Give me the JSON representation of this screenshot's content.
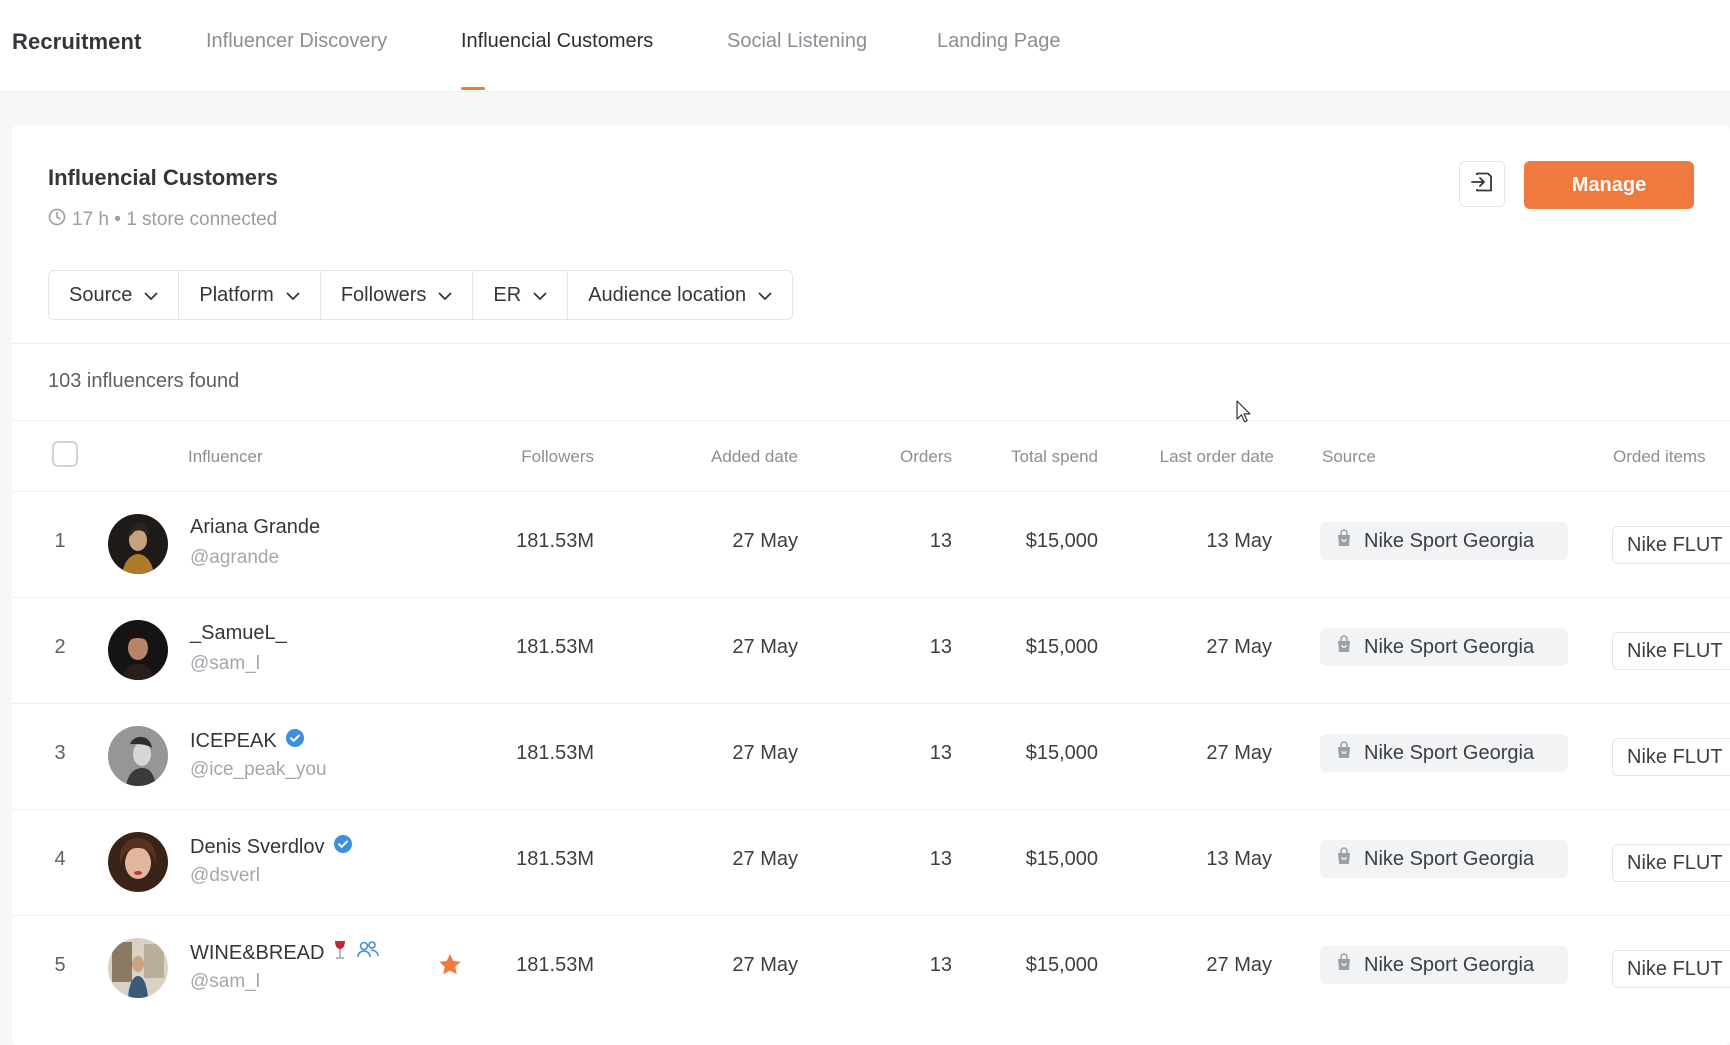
{
  "nav": {
    "brand": "Recruitment",
    "tabs": [
      "Influencer Discovery",
      "Influencial Customers",
      "Social Listening",
      "Landing Page"
    ],
    "active_tab": "Influencial Customers"
  },
  "card": {
    "title": "Influencial Customers",
    "subtitle": "17 h • 1 store connected",
    "manage_label": "Manage",
    "export_icon": "export-icon"
  },
  "filters": [
    "Source",
    "Platform",
    "Followers",
    "ER",
    "Audience location"
  ],
  "results": {
    "found_text": "103 influencers found"
  },
  "table": {
    "headers": {
      "influencer": "Influencer",
      "followers": "Followers",
      "added_date": "Added date",
      "orders": "Orders",
      "total_spend": "Total spend",
      "last_order_date": "Last order date",
      "source": "Source",
      "ordered_items": "Orded items"
    },
    "rows": [
      {
        "index": "1",
        "name": "Ariana Grande",
        "handle": "@agrande",
        "verified": false,
        "followers": "181.53M",
        "added_date": "27 May",
        "orders": "13",
        "total_spend": "$15,000",
        "last_order_date": "13 May",
        "source": "Nike Sport Georgia",
        "ordered_items": "Nike FLUT"
      },
      {
        "index": "2",
        "name": "_SamueL_",
        "handle": "@sam_l",
        "verified": false,
        "followers": "181.53M",
        "added_date": "27 May",
        "orders": "13",
        "total_spend": "$15,000",
        "last_order_date": "27 May",
        "source": "Nike Sport Georgia",
        "ordered_items": "Nike FLUT"
      },
      {
        "index": "3",
        "name": "ICEPEAK",
        "handle": "@ice_peak_you",
        "verified": true,
        "followers": "181.53M",
        "added_date": "27 May",
        "orders": "13",
        "total_spend": "$15,000",
        "last_order_date": "27 May",
        "source": "Nike Sport Georgia",
        "ordered_items": "Nike FLUT"
      },
      {
        "index": "4",
        "name": "Denis Sverdlov",
        "handle": "@dsverl",
        "verified": true,
        "followers": "181.53M",
        "added_date": "27 May",
        "orders": "13",
        "total_spend": "$15,000",
        "last_order_date": "13 May",
        "source": "Nike Sport Georgia",
        "ordered_items": "Nike FLUT"
      },
      {
        "index": "5",
        "name": "WINE&BREAD",
        "handle": "@sam_l",
        "verified": false,
        "followers": "181.53M",
        "added_date": "27 May",
        "orders": "13",
        "total_spend": "$15,000",
        "last_order_date": "27 May",
        "source": "Nike Sport Georgia",
        "ordered_items": "Nike FLUT"
      }
    ]
  },
  "colors": {
    "accent": "#f07a3e",
    "verified": "#3d8fe0"
  }
}
